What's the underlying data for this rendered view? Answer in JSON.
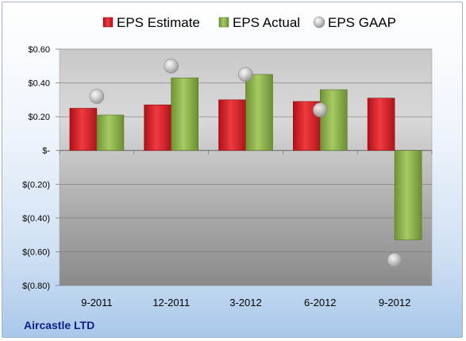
{
  "company_label": "Aircastle LTD",
  "colors": {
    "estimate": "#d9272e",
    "actual": "#8fb64d",
    "gaap": "#b7b7b7"
  },
  "chart_data": {
    "type": "bar",
    "categories": [
      "9-2011",
      "12-2011",
      "3-2012",
      "6-2012",
      "9-2012"
    ],
    "series": [
      {
        "name": "EPS Estimate",
        "kind": "bar",
        "values": [
          0.25,
          0.27,
          0.3,
          0.29,
          0.31
        ]
      },
      {
        "name": "EPS Actual",
        "kind": "bar",
        "values": [
          0.21,
          0.43,
          0.45,
          0.36,
          -0.53
        ]
      },
      {
        "name": "EPS GAAP",
        "kind": "marker",
        "values": [
          0.32,
          0.5,
          0.45,
          0.24,
          -0.65
        ]
      }
    ],
    "ylim": [
      -0.8,
      0.6
    ],
    "yticks": [
      0.6,
      0.4,
      0.2,
      0,
      -0.2,
      -0.4,
      -0.6,
      -0.8
    ],
    "ytick_labels": [
      "$0.60",
      "$0.40",
      "$0.20",
      "$-",
      "$(0.20)",
      "$(0.40)",
      "$(0.60)",
      "$(0.80)"
    ],
    "grid": true,
    "legend": "top"
  }
}
